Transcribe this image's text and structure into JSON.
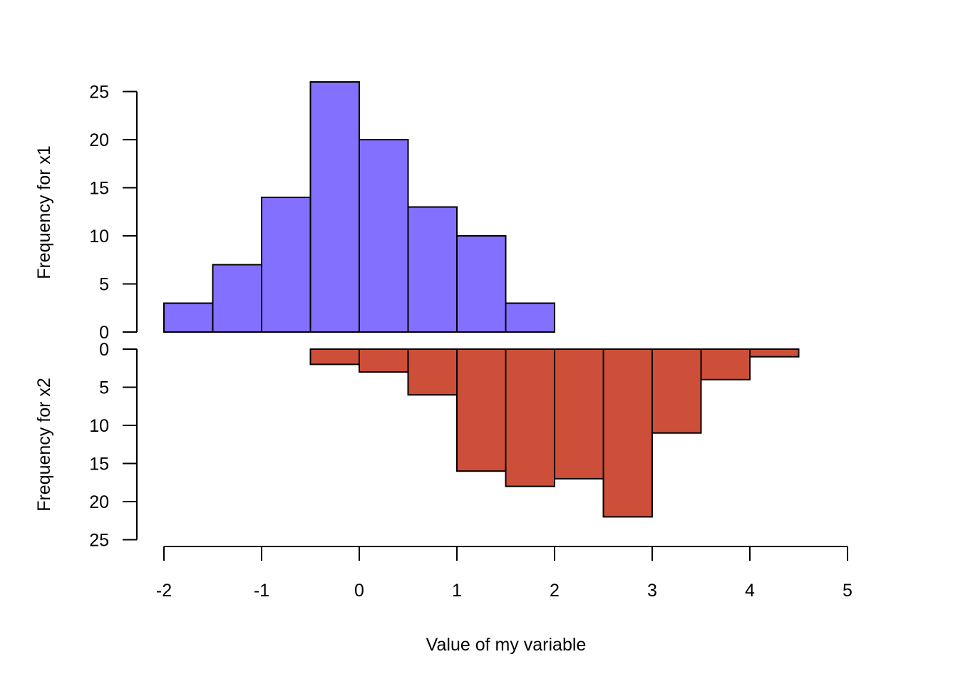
{
  "chart_data": {
    "type": "bar",
    "subtype": "back-to-back histogram",
    "title": "",
    "xlabel": "Value of my variable",
    "xlim": [
      -2,
      5
    ],
    "xticks": [
      "-2",
      "-1",
      "0",
      "1",
      "2",
      "3",
      "4",
      "5"
    ],
    "bin_width": 0.5,
    "series": [
      {
        "ylabel": "Frequency for x1",
        "color": "#8470FF",
        "direction": "up",
        "ylim": [
          0,
          25
        ],
        "yticks": [
          "0",
          "5",
          "10",
          "15",
          "20",
          "25"
        ],
        "bin_starts": [
          -2,
          -1.5,
          -1,
          -0.5,
          0,
          0.5,
          1,
          1.5
        ],
        "values": [
          3,
          7,
          14,
          26,
          20,
          13,
          10,
          3
        ]
      },
      {
        "ylabel": "Frequency for x2",
        "color": "#CD4F39",
        "direction": "down",
        "ylim": [
          0,
          25
        ],
        "yticks": [
          "0",
          "5",
          "10",
          "15",
          "20",
          "25"
        ],
        "bin_starts": [
          -0.5,
          0,
          0.5,
          1,
          1.5,
          2,
          2.5,
          3,
          3.5,
          4
        ],
        "values": [
          2,
          3,
          6,
          16,
          18,
          17,
          22,
          11,
          4,
          1
        ]
      }
    ]
  }
}
